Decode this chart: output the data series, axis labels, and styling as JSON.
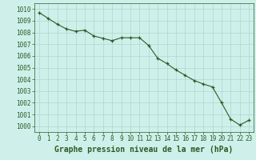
{
  "x": [
    0,
    1,
    2,
    3,
    4,
    5,
    6,
    7,
    8,
    9,
    10,
    11,
    12,
    13,
    14,
    15,
    16,
    17,
    18,
    19,
    20,
    21,
    22,
    23
  ],
  "y": [
    1009.7,
    1009.2,
    1008.7,
    1008.3,
    1008.1,
    1008.2,
    1007.7,
    1007.5,
    1007.3,
    1007.55,
    1007.55,
    1007.55,
    1006.9,
    1005.8,
    1005.35,
    1004.8,
    1004.35,
    1003.9,
    1003.6,
    1003.35,
    1002.0,
    1000.6,
    1000.1,
    1000.5
  ],
  "line_color": "#2d5a27",
  "marker_color": "#2d5a27",
  "bg_color": "#cff0ea",
  "grid_color": "#a8d8d0",
  "title": "Graphe pression niveau de la mer (hPa)",
  "ylim": [
    999.5,
    1010.5
  ],
  "yticks": [
    1000,
    1001,
    1002,
    1003,
    1004,
    1005,
    1006,
    1007,
    1008,
    1009,
    1010
  ],
  "xticks": [
    0,
    1,
    2,
    3,
    4,
    5,
    6,
    7,
    8,
    9,
    10,
    11,
    12,
    13,
    14,
    15,
    16,
    17,
    18,
    19,
    20,
    21,
    22,
    23
  ],
  "tick_fontsize": 5.5,
  "title_fontsize": 7.0,
  "title_fontweight": "bold"
}
